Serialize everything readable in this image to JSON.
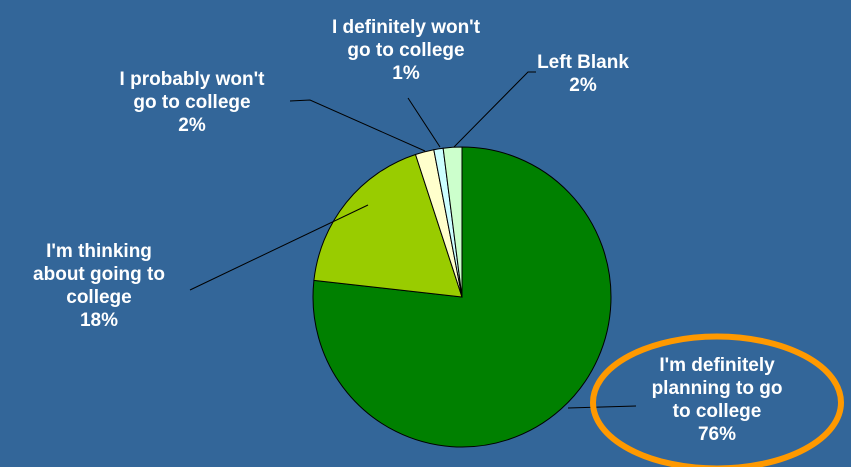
{
  "chart_data": {
    "type": "pie",
    "slices": [
      {
        "id": "definitely-planning",
        "label_lines": [
          "I'm definitely",
          "planning to go",
          "to college"
        ],
        "value": 76,
        "value_label": "76%",
        "color": "#008000",
        "highlighted": true
      },
      {
        "id": "thinking-about",
        "label_lines": [
          "I'm thinking",
          "about going to",
          "college"
        ],
        "value": 18,
        "value_label": "18%",
        "color": "#99cc00",
        "highlighted": false
      },
      {
        "id": "probably-wont",
        "label_lines": [
          "I probably won't",
          "go to college"
        ],
        "value": 2,
        "value_label": "2%",
        "color": "#ffffcc",
        "highlighted": false
      },
      {
        "id": "definitely-wont",
        "label_lines": [
          "I definitely won't",
          "go to college"
        ],
        "value": 1,
        "value_label": "1%",
        "color": "#ccffff",
        "highlighted": false
      },
      {
        "id": "left-blank",
        "label_lines": [
          "Left Blank"
        ],
        "value": 2,
        "value_label": "2%",
        "color": "#ccffcc",
        "highlighted": false
      }
    ],
    "start": "12 o'clock",
    "direction": "clockwise",
    "highlight_color": "#ff9900",
    "background_color": "#336699",
    "label_color": "#ffffff"
  }
}
